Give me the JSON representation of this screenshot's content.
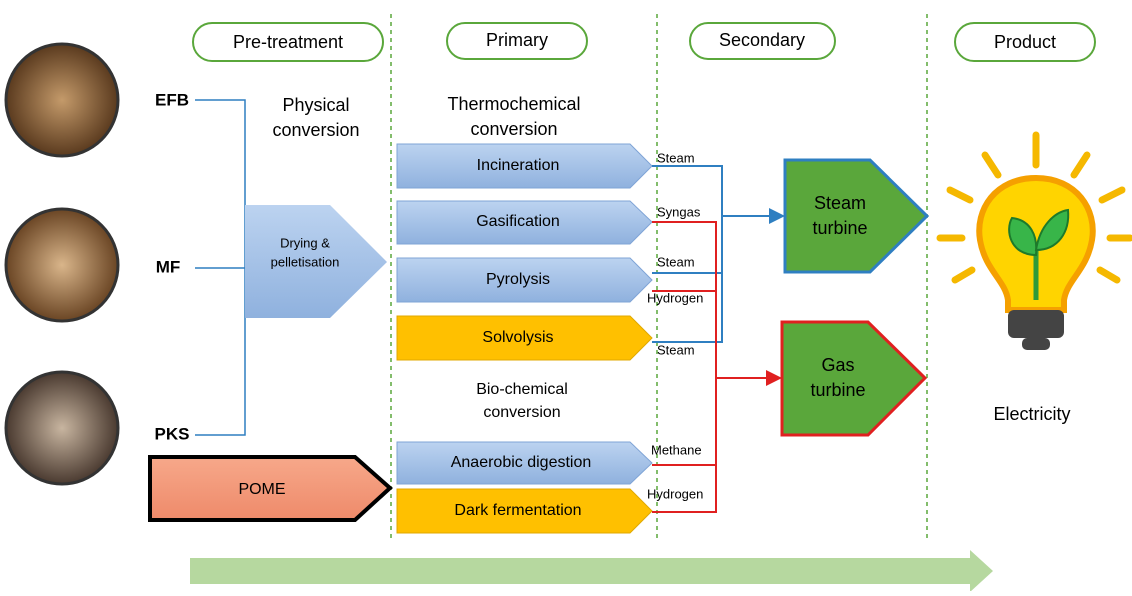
{
  "stages": [
    "Pre-treatment",
    "Primary",
    "Secondary",
    "Product"
  ],
  "feedstocks": [
    "EFB",
    "MF",
    "PKS",
    "POME"
  ],
  "sections": [
    {
      "lines": [
        "Physical",
        "conversion"
      ]
    },
    {
      "lines": [
        "Thermochemical",
        "conversion"
      ]
    },
    {
      "lines": [
        "Bio-chemical",
        "conversion"
      ]
    }
  ],
  "pretreatment": {
    "lines": [
      "Drying &",
      "pelletisation"
    ]
  },
  "processes": [
    "Incineration",
    "Gasification",
    "Pyrolysis",
    "Solvolysis",
    "Anaerobic digestion",
    "Dark  fermentation"
  ],
  "streams": [
    "Steam",
    "Syngas",
    "Steam",
    "Hydrogen",
    "Steam",
    "Methane",
    "Hydrogen"
  ],
  "turbines": [
    {
      "lines": [
        "Steam",
        "turbine"
      ]
    },
    {
      "lines": [
        "Gas",
        "turbine"
      ]
    }
  ],
  "product": "Electricity"
}
